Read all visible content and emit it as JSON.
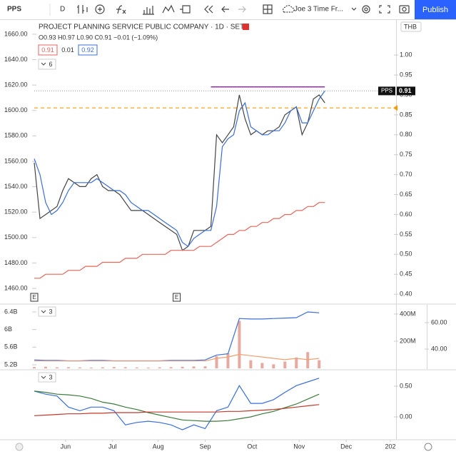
{
  "toolbar": {
    "symbol": "PPS",
    "interval": "D",
    "layout_name": "Joe 3 Time Fr...",
    "publish": "Publish"
  },
  "chart_data": [
    {
      "type": "line",
      "title": "PROJECT PLANNING SERVICE PUBLIC COMPANY · 1D · SET",
      "subtitle": "O0.93 H0.97 L0.90 C0.91 −0.01 (−1.09%)",
      "legend_values": [
        "0.91",
        "0.01",
        "0.92"
      ],
      "indicator_length": "6",
      "currency": "THB",
      "price_tag": {
        "label": "PPS",
        "value": 0.91,
        "axis": "y2"
      },
      "xlim": [
        0,
        254
      ],
      "xticks": [
        {
          "value": 22,
          "label": "Jun"
        },
        {
          "value": 55,
          "label": "Jul"
        },
        {
          "value": 87,
          "label": "Aug"
        },
        {
          "value": 120,
          "label": "Sep"
        },
        {
          "value": 153,
          "label": "Oct"
        },
        {
          "value": 186,
          "label": "Nov"
        },
        {
          "value": 219,
          "label": "Dec"
        },
        {
          "value": 250,
          "label": "202"
        }
      ],
      "ylim": [
        1448.2,
        1671.2
      ],
      "yticks": [
        {
          "value": 1460,
          "label": "1460.00"
        },
        {
          "value": 1480,
          "label": "1480.00"
        },
        {
          "value": 1500,
          "label": "1500.00"
        },
        {
          "value": 1520,
          "label": "1520.00"
        },
        {
          "value": 1540,
          "label": "1540.00"
        },
        {
          "value": 1560,
          "label": "1560.00"
        },
        {
          "value": 1580,
          "label": "1580.00"
        },
        {
          "value": 1600,
          "label": "1600.00"
        },
        {
          "value": 1620,
          "label": "1620.00"
        },
        {
          "value": 1640,
          "label": "1640.00"
        },
        {
          "value": 1660,
          "label": "1660.00"
        }
      ],
      "y2lim": [
        0.377,
        1.088
      ],
      "y2ticks": [
        {
          "value": 0.4,
          "label": "0.40"
        },
        {
          "value": 0.45,
          "label": "0.45"
        },
        {
          "value": 0.5,
          "label": "0.50"
        },
        {
          "value": 0.55,
          "label": "0.55"
        },
        {
          "value": 0.6,
          "label": "0.60"
        },
        {
          "value": 0.65,
          "label": "0.65"
        },
        {
          "value": 0.7,
          "label": "0.70"
        },
        {
          "value": 0.75,
          "label": "0.75"
        },
        {
          "value": 0.8,
          "label": "0.80"
        },
        {
          "value": 0.85,
          "label": "0.85"
        },
        {
          "value": 0.9,
          "label": "0.90"
        },
        {
          "value": 0.95,
          "label": "0.95"
        },
        {
          "value": 1,
          "label": "1.00"
        }
      ],
      "grid": false,
      "x": [
        0,
        4,
        8,
        12,
        16,
        20,
        24,
        28,
        32,
        36,
        40,
        44,
        48,
        52,
        56,
        60,
        64,
        68,
        72,
        76,
        80,
        84,
        88,
        92,
        96,
        100,
        104,
        108,
        112,
        116,
        120,
        124,
        128,
        132,
        136,
        140,
        144,
        148,
        152,
        156,
        160,
        164,
        168,
        172,
        176,
        180,
        184,
        188,
        192,
        196,
        200,
        204
      ],
      "series": [
        {
          "color": "#444444",
          "axis": "y2",
          "style": "line",
          "values": [
            0.73,
            0.59,
            0.6,
            0.61,
            0.62,
            0.66,
            0.69,
            0.68,
            0.67,
            0.67,
            0.69,
            0.7,
            0.67,
            0.66,
            0.66,
            0.65,
            0.63,
            0.61,
            0.61,
            0.61,
            0.6,
            0.59,
            0.58,
            0.57,
            0.56,
            0.55,
            0.51,
            0.52,
            0.56,
            0.56,
            0.56,
            0.57,
            0.8,
            0.78,
            0.8,
            0.82,
            0.9,
            0.84,
            0.8,
            0.81,
            0.8,
            0.81,
            0.81,
            0.82,
            0.85,
            0.86,
            0.87,
            0.8,
            0.83,
            0.89,
            0.9,
            0.88
          ]
        },
        {
          "color": "#3b6ed8",
          "axis": "y2",
          "style": "line",
          "values": [
            0.74,
            0.7,
            0.63,
            0.6,
            0.61,
            0.63,
            0.66,
            0.68,
            0.68,
            0.68,
            0.68,
            0.69,
            0.68,
            0.67,
            0.66,
            0.66,
            0.65,
            0.63,
            0.62,
            0.61,
            0.61,
            0.6,
            0.59,
            0.58,
            0.57,
            0.56,
            0.53,
            0.52,
            0.54,
            0.55,
            0.56,
            0.56,
            0.62,
            0.77,
            0.79,
            0.8,
            0.86,
            0.88,
            0.82,
            0.81,
            0.8,
            0.8,
            0.81,
            0.81,
            0.83,
            0.86,
            0.87,
            0.83,
            0.83,
            0.86,
            0.89,
            0.91
          ]
        },
        {
          "color": "#e5665c",
          "axis": "y2",
          "style": "line",
          "values": [
            0.44,
            0.44,
            0.45,
            0.45,
            0.45,
            0.45,
            0.46,
            0.46,
            0.46,
            0.47,
            0.47,
            0.47,
            0.48,
            0.48,
            0.48,
            0.48,
            0.49,
            0.49,
            0.49,
            0.5,
            0.5,
            0.5,
            0.5,
            0.5,
            0.51,
            0.51,
            0.51,
            0.51,
            0.51,
            0.52,
            0.52,
            0.52,
            0.53,
            0.54,
            0.55,
            0.55,
            0.56,
            0.56,
            0.57,
            0.57,
            0.58,
            0.58,
            0.59,
            0.59,
            0.6,
            0.6,
            0.61,
            0.61,
            0.62,
            0.62,
            0.63,
            0.63
          ]
        }
      ],
      "hlines": [
        {
          "value": 0.92,
          "axis": "y2",
          "color": "#9c27b0",
          "style": "line",
          "x": [
            124,
            204
          ]
        },
        {
          "value": 1602,
          "axis": "y",
          "color": "#ff9800",
          "style": "dashed",
          "x": [
            0,
            254
          ]
        }
      ],
      "events": [
        {
          "x": 0,
          "label": "E"
        },
        {
          "x": 100,
          "label": "E"
        }
      ]
    },
    {
      "type": "line",
      "indicator_length": "3",
      "xlim": [
        0,
        254
      ],
      "ylim": [
        5.103,
        6.562
      ],
      "yticks": [
        {
          "value": 5.2,
          "label": "5.2B"
        },
        {
          "value": 5.6,
          "label": "5.6B"
        },
        {
          "value": 6,
          "label": "6B"
        },
        {
          "value": 6.4,
          "label": "6.4B"
        }
      ],
      "y2lim": [
        -5,
        468
      ],
      "y2ticks": [
        {
          "value": 200,
          "label": "200M"
        },
        {
          "value": 400,
          "label": "400M"
        }
      ],
      "y3lim": [
        24.9,
        73.5
      ],
      "y3ticks": [
        {
          "value": 40,
          "label": "40.00"
        },
        {
          "value": 60,
          "label": "60.00"
        }
      ],
      "grid": false,
      "x": [
        0,
        8,
        16,
        24,
        32,
        40,
        48,
        56,
        64,
        72,
        80,
        88,
        96,
        104,
        112,
        120,
        128,
        136,
        144,
        152,
        160,
        168,
        176,
        184,
        192,
        200
      ],
      "series": [
        {
          "color": "#e8a9a0",
          "axis": "y2",
          "style": "bar",
          "values": [
            10,
            12,
            8,
            9,
            7,
            6,
            8,
            10,
            9,
            7,
            6,
            8,
            9,
            12,
            14,
            15,
            90,
            110,
            350,
            60,
            40,
            30,
            50,
            80,
            120,
            60
          ]
        },
        {
          "color": "#3b6ed8",
          "axis": "y",
          "style": "line",
          "values": [
            5.31,
            5.3,
            5.3,
            5.29,
            5.29,
            5.3,
            5.3,
            5.29,
            5.29,
            5.29,
            5.29,
            5.29,
            5.3,
            5.3,
            5.3,
            5.31,
            5.42,
            5.45,
            6.25,
            6.24,
            6.24,
            6.25,
            6.26,
            6.27,
            6.4,
            6.38
          ]
        },
        {
          "color": "#f0a070",
          "axis": "y3",
          "style": "line",
          "values": [
            31,
            31,
            31,
            31,
            31,
            31,
            31,
            31,
            31,
            31,
            31,
            31,
            31,
            31,
            31,
            31,
            33,
            34,
            36,
            35,
            34,
            33,
            32,
            33,
            32,
            33
          ]
        }
      ]
    },
    {
      "type": "line",
      "indicator_length": "3",
      "xlim": [
        0,
        254
      ],
      "y2lim": [
        -0.36,
        0.756
      ],
      "y2ticks": [
        {
          "value": 0,
          "label": "0.00"
        },
        {
          "value": 0.5,
          "label": "0.50"
        }
      ],
      "grid": false,
      "x": [
        0,
        8,
        16,
        24,
        32,
        40,
        48,
        56,
        64,
        72,
        80,
        88,
        96,
        104,
        112,
        120,
        128,
        136,
        144,
        152,
        160,
        168,
        176,
        184,
        192,
        200
      ],
      "series": [
        {
          "color": "#3b6ed8",
          "axis": "y2",
          "style": "line",
          "values": [
            0.42,
            0.37,
            0.34,
            0.16,
            0.1,
            0.16,
            0.16,
            0.1,
            -0.13,
            -0.09,
            -0.07,
            -0.09,
            -0.13,
            -0.21,
            -0.13,
            -0.19,
            0.1,
            0.16,
            0.51,
            0.22,
            0.22,
            0.28,
            0.4,
            0.51,
            0.57,
            0.63
          ]
        },
        {
          "color": "#3d7a3d",
          "axis": "y2",
          "style": "line",
          "values": [
            0.42,
            0.4,
            0.37,
            0.36,
            0.34,
            0.3,
            0.24,
            0.21,
            0.16,
            0.12,
            0.07,
            0.03,
            -0.01,
            -0.05,
            -0.06,
            -0.07,
            -0.07,
            -0.06,
            -0.03,
            0.0,
            0.05,
            0.09,
            0.15,
            0.21,
            0.29,
            0.37
          ]
        },
        {
          "color": "#c0392b",
          "axis": "y2",
          "style": "line",
          "values": [
            0.02,
            0.03,
            0.04,
            0.05,
            0.05,
            0.06,
            0.06,
            0.07,
            0.07,
            0.07,
            0.08,
            0.08,
            0.08,
            0.08,
            0.08,
            0.08,
            0.08,
            0.09,
            0.09,
            0.1,
            0.11,
            0.12,
            0.14,
            0.16,
            0.18,
            0.2
          ]
        }
      ]
    }
  ]
}
